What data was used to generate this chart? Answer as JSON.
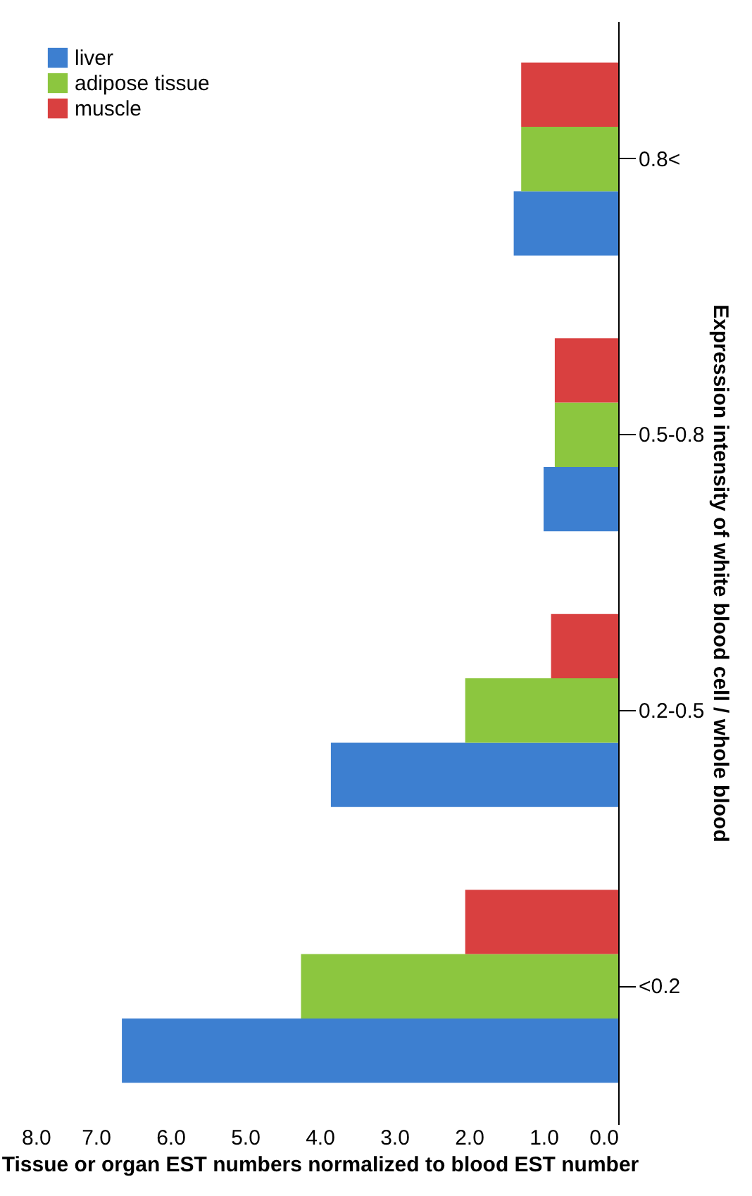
{
  "chart_data": {
    "type": "bar",
    "orientation": "horizontal",
    "categories": [
      "0.8<",
      "0.5-0.8",
      "0.2-0.5",
      "<0.2"
    ],
    "series": [
      {
        "name": "liver",
        "color": "#3d7fd0",
        "values": [
          1.4,
          1.0,
          3.85,
          6.65
        ]
      },
      {
        "name": "adipose tissue",
        "color": "#8cc63f",
        "values": [
          1.3,
          0.85,
          2.05,
          4.25
        ]
      },
      {
        "name": "muscle",
        "color": "#d94040",
        "values": [
          1.3,
          0.85,
          0.9,
          2.05
        ]
      }
    ],
    "xlim": [
      8,
      0
    ],
    "xticks": [
      {
        "value": 8,
        "label": "8.0"
      },
      {
        "value": 7,
        "label": "7.0"
      },
      {
        "value": 6,
        "label": "6.0"
      },
      {
        "value": 5,
        "label": "5.0"
      },
      {
        "value": 4,
        "label": "4.0"
      },
      {
        "value": 3,
        "label": "3.0"
      },
      {
        "value": 2,
        "label": "2.0"
      },
      {
        "value": 1,
        "label": "1.0"
      },
      {
        "value": 0,
        "label": "0.0"
      }
    ],
    "xlabel": "Tissue or organ EST numbers normalized to blood EST number",
    "ylabel": "Expression intensity of white blood cell / whole blood",
    "legend": "top left",
    "grid": false
  }
}
